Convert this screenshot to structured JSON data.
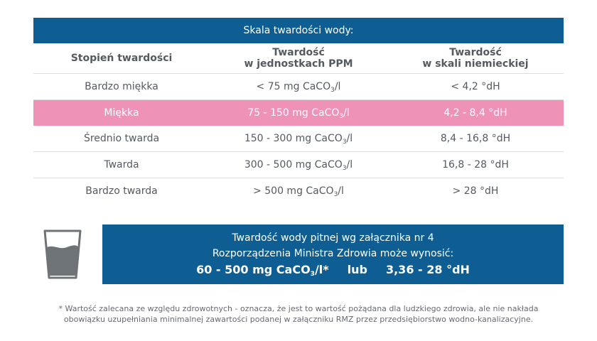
{
  "table": {
    "title": "Skala twardości wody:",
    "headers": {
      "col1": "Stopień twardości",
      "col2_line1": "Twardość",
      "col2_line2": "w jednostkach PPM",
      "col3_line1": "Twardość",
      "col3_line2": "w skali niemieckiej"
    },
    "rows": [
      {
        "name": "Bardzo miękka",
        "ppm_pre": "< 75 mg CaCO",
        "ppm_sub": "3",
        "ppm_post": "/l",
        "dh": "< 4,2 °dH",
        "highlighted": false
      },
      {
        "name": "Miękka",
        "ppm_pre": "75 - 150 mg CaCO",
        "ppm_sub": "3",
        "ppm_post": "/l",
        "dh": "4,2 - 8,4 °dH",
        "highlighted": true
      },
      {
        "name": "Średnio twarda",
        "ppm_pre": "150 - 300 mg CaCO",
        "ppm_sub": "3",
        "ppm_post": "/l",
        "dh": "8,4 - 16,8 °dH",
        "highlighted": false
      },
      {
        "name": "Twarda",
        "ppm_pre": "300 - 500 mg CaCO",
        "ppm_sub": "3",
        "ppm_post": "/l",
        "dh": "16,8 - 28 °dH",
        "highlighted": false
      },
      {
        "name": "Bardzo twarda",
        "ppm_pre": "> 500 mg CaCO",
        "ppm_sub": "3",
        "ppm_post": "/l",
        "dh": "> 28 °dH",
        "highlighted": false
      }
    ]
  },
  "info": {
    "line1": "Twardość wody pitnej wg załącznika nr 4",
    "line2": "Rozporządzenia Ministra Zdrowia może wynosić:",
    "value_pre": "60 - 500 mg CaCO",
    "value_sub": "3",
    "value_post": "/l*",
    "connector": "lub",
    "dh_value": "3,36 - 28 °dH",
    "icon": "water-glass-icon"
  },
  "footnote": {
    "line1": "* Wartość zalecana ze względu zdrowotnych - oznacza, że jest to wartość pożądana dla ludzkiego zdrowia, ale nie nakłada",
    "line2": "obowiązku uzupełniania minimalnej zawartości podanej w załączniku RMZ przez przedsiębiorstwo wodno-kanalizacyjne."
  },
  "colors": {
    "header_blue": "#0f5e93",
    "highlight_pink": "#ef92b8",
    "text_gray": "#555a60"
  }
}
